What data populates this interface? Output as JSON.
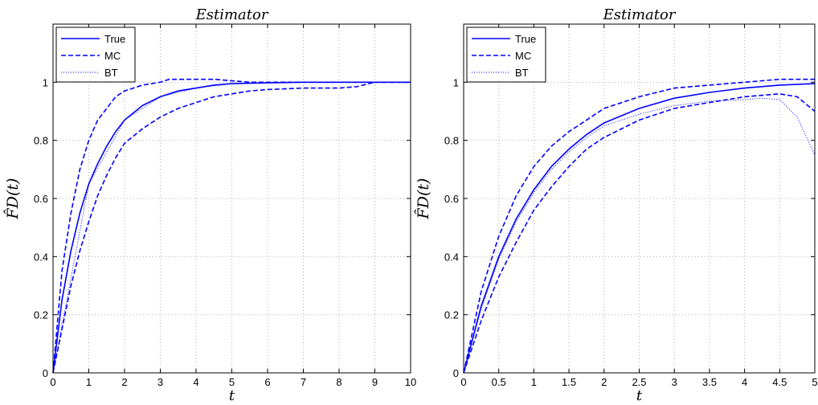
{
  "chart_data": [
    {
      "type": "line",
      "title": "Estimator",
      "xlabel": "t",
      "ylabel": "F̂D(t)",
      "xlim": [
        0,
        10
      ],
      "ylim": [
        0,
        1.2
      ],
      "xticks": [
        "0",
        "1",
        "2",
        "3",
        "4",
        "5",
        "6",
        "7",
        "8",
        "9",
        "10"
      ],
      "yticks": [
        "0",
        "0.2",
        "0.4",
        "0.6",
        "0.8",
        "1"
      ],
      "grid": true,
      "legend_position": "top-left",
      "series": [
        {
          "name": "True",
          "style": "solid",
          "color": "#0000ff",
          "x": [
            0,
            0.25,
            0.5,
            0.75,
            1,
            1.25,
            1.5,
            1.75,
            2,
            2.5,
            3,
            3.5,
            4,
            4.5,
            5,
            6,
            7,
            8,
            9,
            10
          ],
          "y": [
            0,
            0.25,
            0.42,
            0.55,
            0.65,
            0.72,
            0.78,
            0.83,
            0.87,
            0.92,
            0.95,
            0.97,
            0.98,
            0.99,
            0.995,
            0.998,
            1,
            1,
            1,
            1
          ]
        },
        {
          "name": "MC",
          "style": "dashed",
          "color": "#0000ff",
          "x": [
            0,
            0.25,
            0.5,
            0.75,
            1,
            1.25,
            1.5,
            1.75,
            2,
            2.5,
            3,
            3.25,
            3.5,
            4,
            4.5,
            5,
            5.5,
            6,
            7,
            8,
            9,
            10
          ],
          "y": [
            0,
            0.35,
            0.55,
            0.7,
            0.8,
            0.87,
            0.91,
            0.95,
            0.97,
            0.99,
            1.0,
            1.01,
            1.01,
            1.01,
            1.01,
            1.005,
            1.0,
            1.0,
            1.0,
            1.0,
            1.0,
            1.0
          ]
        },
        {
          "name": "MC",
          "style": "dashed",
          "color": "#0000ff",
          "x": [
            0,
            0.25,
            0.5,
            0.75,
            1,
            1.25,
            1.5,
            1.75,
            2,
            2.5,
            3,
            3.5,
            4,
            4.5,
            5,
            5.5,
            6,
            7,
            8,
            8.5,
            9,
            10
          ],
          "y": [
            0,
            0.15,
            0.3,
            0.42,
            0.52,
            0.61,
            0.68,
            0.74,
            0.79,
            0.84,
            0.88,
            0.91,
            0.93,
            0.95,
            0.96,
            0.97,
            0.975,
            0.98,
            0.98,
            0.985,
            1.0,
            1.0
          ]
        },
        {
          "name": "BT",
          "style": "dotted",
          "color": "#0000ff",
          "x": [
            0,
            1,
            2,
            3,
            4,
            5,
            6,
            7,
            8,
            9,
            10
          ],
          "y": [
            0,
            0.65,
            0.87,
            0.95,
            0.98,
            0.995,
            0.998,
            1,
            1,
            1,
            1
          ]
        }
      ]
    },
    {
      "type": "line",
      "title": "Estimator",
      "xlabel": "t",
      "ylabel": "F̂D(t)",
      "xlim": [
        0,
        5
      ],
      "ylim": [
        0,
        1.2
      ],
      "xticks": [
        "0",
        "0.5",
        "1",
        "1.5",
        "2",
        "2.5",
        "3",
        "3.5",
        "4",
        "4.5",
        "5"
      ],
      "yticks": [
        "0",
        "0.2",
        "0.4",
        "0.6",
        "0.8",
        "1"
      ],
      "grid": true,
      "legend_position": "top-left",
      "series": [
        {
          "name": "True",
          "style": "solid",
          "color": "#0000ff",
          "x": [
            0,
            0.25,
            0.5,
            0.75,
            1,
            1.25,
            1.5,
            1.75,
            2,
            2.5,
            3,
            3.5,
            4,
            4.5,
            5
          ],
          "y": [
            0,
            0.23,
            0.4,
            0.53,
            0.63,
            0.71,
            0.77,
            0.82,
            0.86,
            0.91,
            0.945,
            0.965,
            0.98,
            0.99,
            0.995
          ]
        },
        {
          "name": "MC",
          "style": "dashed",
          "color": "#0000ff",
          "x": [
            0,
            0.25,
            0.5,
            0.75,
            1,
            1.25,
            1.5,
            1.75,
            2,
            2.5,
            3,
            3.5,
            4,
            4.5,
            5
          ],
          "y": [
            0,
            0.28,
            0.47,
            0.61,
            0.71,
            0.78,
            0.83,
            0.87,
            0.91,
            0.95,
            0.98,
            0.99,
            1.0,
            1.01,
            1.01
          ]
        },
        {
          "name": "MC",
          "style": "dashed",
          "color": "#0000ff",
          "x": [
            0,
            0.25,
            0.5,
            0.75,
            1,
            1.25,
            1.5,
            1.75,
            2,
            2.5,
            3,
            3.5,
            4,
            4.5,
            4.75,
            5
          ],
          "y": [
            0,
            0.18,
            0.33,
            0.45,
            0.56,
            0.64,
            0.71,
            0.77,
            0.81,
            0.87,
            0.91,
            0.93,
            0.95,
            0.96,
            0.95,
            0.9
          ]
        },
        {
          "name": "BT",
          "style": "dotted",
          "color": "#0000ff",
          "x": [
            0,
            0.25,
            0.5,
            0.75,
            1,
            1.25,
            1.5,
            1.75,
            2,
            2.5,
            3,
            3.5,
            4,
            4.25,
            4.5,
            4.75,
            5
          ],
          "y": [
            0,
            0.22,
            0.39,
            0.52,
            0.62,
            0.7,
            0.76,
            0.81,
            0.85,
            0.89,
            0.92,
            0.935,
            0.94,
            0.945,
            0.94,
            0.88,
            0.75
          ]
        }
      ]
    }
  ]
}
